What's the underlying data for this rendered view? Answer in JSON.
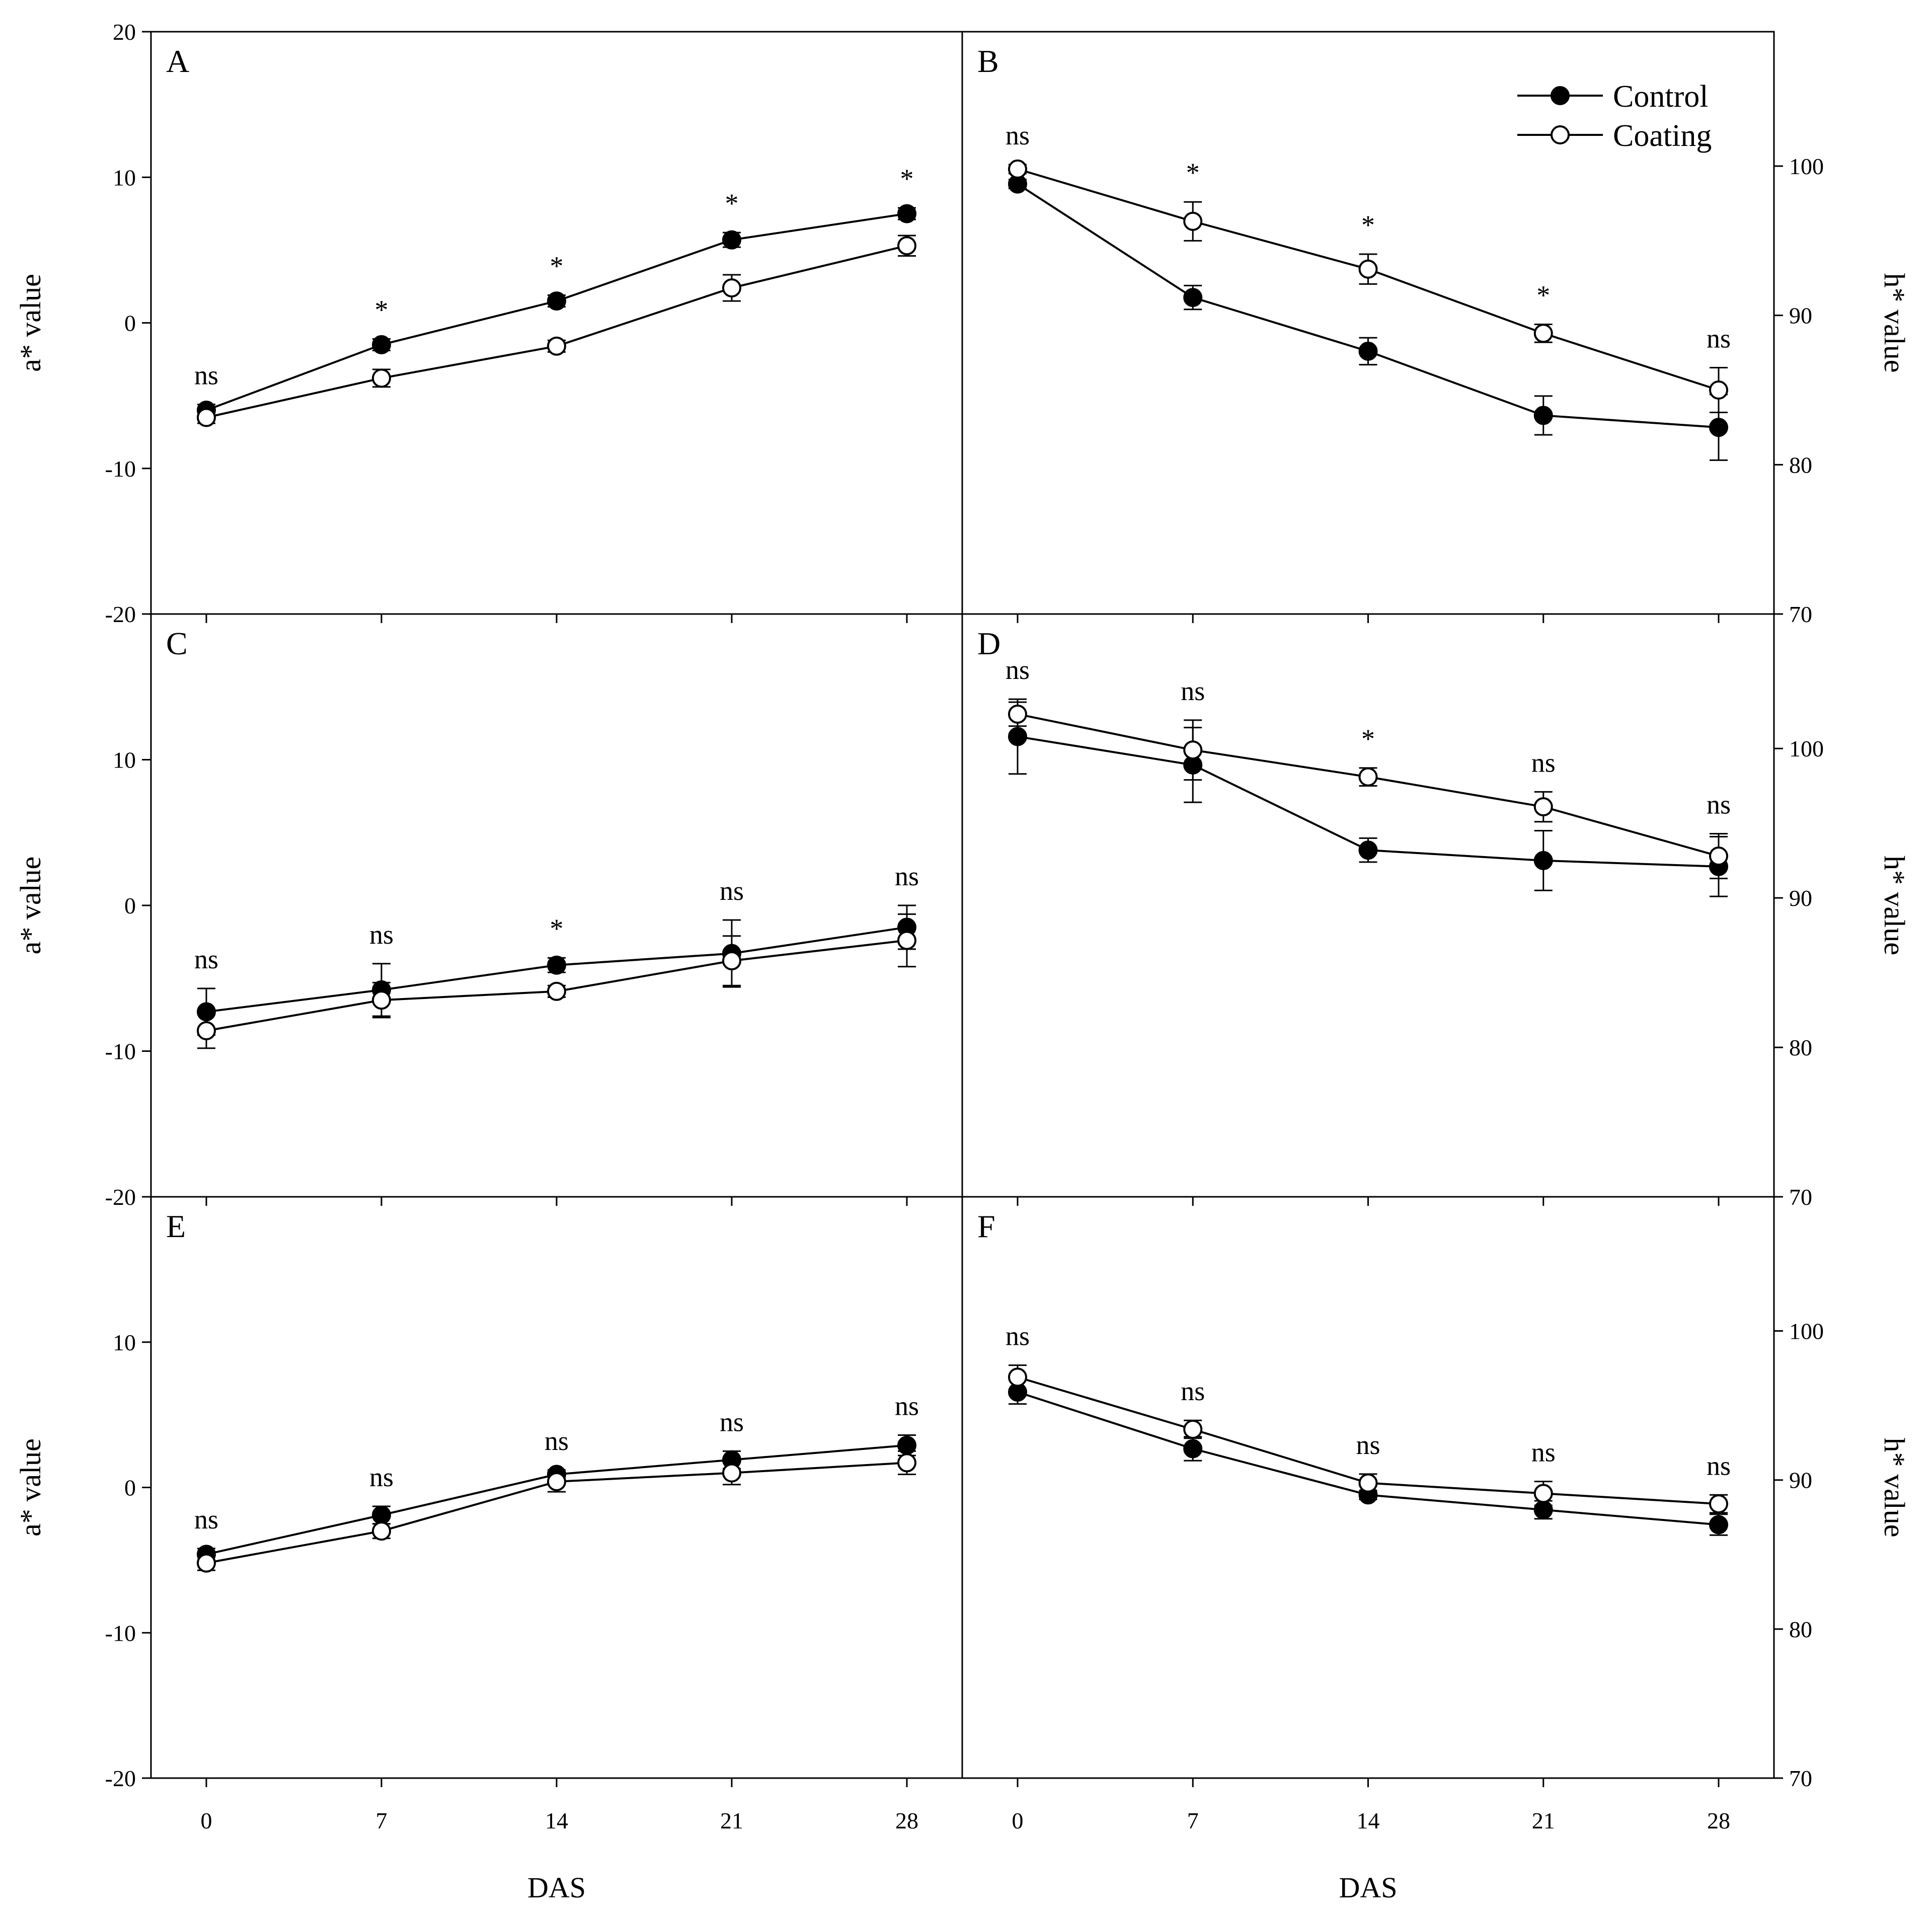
{
  "figure": {
    "legend": {
      "control": "Control",
      "coating": "Coating"
    },
    "colors": {
      "line": "#000000",
      "control_marker": "#000000",
      "coating_marker": "#ffffff"
    }
  },
  "chart_data": [
    {
      "panel": "A",
      "type": "line",
      "xlabel": "",
      "ylabel": "a* value",
      "ylabel_side": "left",
      "x": [
        0,
        7,
        14,
        21,
        28
      ],
      "x_tick_labels": [
        "0",
        "7",
        "14",
        "21",
        "28"
      ],
      "ylim": [
        -20,
        20
      ],
      "y_ticks": [
        -20,
        -10,
        0,
        10,
        20
      ],
      "y_tick_labels": [
        "-20",
        "-10",
        "0",
        "10",
        "20"
      ],
      "series": [
        {
          "name": "Control",
          "values": [
            -6,
            -1.5,
            1.5,
            5.7,
            7.5
          ],
          "errors": [
            0.4,
            0.4,
            0.4,
            0.5,
            0.4
          ]
        },
        {
          "name": "Coating",
          "values": [
            -6.5,
            -3.8,
            -1.6,
            2.4,
            5.3
          ],
          "errors": [
            0.4,
            0.6,
            0.4,
            0.9,
            0.7
          ]
        }
      ],
      "significance": [
        "ns",
        "*",
        "*",
        "*",
        "*"
      ]
    },
    {
      "panel": "B",
      "type": "line",
      "xlabel": "",
      "ylabel": "h* value",
      "ylabel_side": "right",
      "x": [
        0,
        7,
        14,
        21,
        28
      ],
      "x_tick_labels": [
        "0",
        "7",
        "14",
        "21",
        "28"
      ],
      "ylim": [
        70,
        109
      ],
      "y_ticks": [
        70,
        80,
        90,
        100
      ],
      "y_tick_labels": [
        "70",
        "80",
        "90",
        "100"
      ],
      "series": [
        {
          "name": "Control",
          "values": [
            98.8,
            91.2,
            87.6,
            83.3,
            82.5
          ],
          "errors": [
            0.3,
            0.8,
            0.9,
            1.3,
            2.2
          ]
        },
        {
          "name": "Coating",
          "values": [
            99.8,
            96.3,
            93.1,
            88.8,
            85.0
          ],
          "errors": [
            0.3,
            1.3,
            1.0,
            0.6,
            1.5
          ]
        }
      ],
      "significance": [
        "ns",
        "*",
        "*",
        "*",
        "ns"
      ]
    },
    {
      "panel": "C",
      "type": "line",
      "xlabel": "",
      "ylabel": "a* value",
      "ylabel_side": "left",
      "x": [
        0,
        7,
        14,
        21,
        28
      ],
      "x_tick_labels": [
        "0",
        "7",
        "14",
        "21",
        "28"
      ],
      "ylim": [
        -20,
        20
      ],
      "y_ticks": [
        -20,
        -10,
        0,
        10
      ],
      "y_tick_labels": [
        "-20",
        "-10",
        "0",
        "10"
      ],
      "series": [
        {
          "name": "Control",
          "values": [
            -7.3,
            -5.8,
            -4.1,
            -3.3,
            -1.5
          ],
          "errors": [
            1.6,
            1.8,
            0.5,
            2.3,
            1.5
          ]
        },
        {
          "name": "Coating",
          "values": [
            -8.6,
            -6.5,
            -5.9,
            -3.8,
            -2.4
          ],
          "errors": [
            1.2,
            1.2,
            0.4,
            1.7,
            1.8
          ]
        }
      ],
      "significance": [
        "ns",
        "ns",
        "*",
        "ns",
        "ns"
      ]
    },
    {
      "panel": "D",
      "type": "line",
      "xlabel": "",
      "ylabel": "h* value",
      "ylabel_side": "right",
      "x": [
        0,
        7,
        14,
        21,
        28
      ],
      "x_tick_labels": [
        "0",
        "7",
        "14",
        "21",
        "28"
      ],
      "ylim": [
        70,
        109
      ],
      "y_ticks": [
        70,
        80,
        90,
        100
      ],
      "y_tick_labels": [
        "70",
        "80",
        "90",
        "100"
      ],
      "series": [
        {
          "name": "Control",
          "values": [
            100.8,
            98.9,
            93.2,
            92.5,
            92.1
          ],
          "errors": [
            2.5,
            2.5,
            0.8,
            2.0,
            2.0
          ]
        },
        {
          "name": "Coating",
          "values": [
            102.3,
            99.9,
            98.1,
            96.1,
            92.8
          ],
          "errors": [
            0.8,
            2.0,
            0.6,
            1.0,
            1.5
          ]
        }
      ],
      "significance": [
        "ns",
        "ns",
        "*",
        "ns",
        "ns"
      ]
    },
    {
      "panel": "E",
      "type": "line",
      "xlabel": "DAS",
      "ylabel": "a* value",
      "ylabel_side": "left",
      "x": [
        0,
        7,
        14,
        21,
        28
      ],
      "x_tick_labels": [
        "0",
        "7",
        "14",
        "21",
        "28"
      ],
      "ylim": [
        -20,
        20
      ],
      "y_ticks": [
        -20,
        -10,
        0,
        10
      ],
      "y_tick_labels": [
        "-20",
        "-10",
        "0",
        "10"
      ],
      "series": [
        {
          "name": "Control",
          "values": [
            -4.6,
            -1.9,
            0.9,
            1.9,
            2.9
          ],
          "errors": [
            0.4,
            0.6,
            0.3,
            0.6,
            0.7
          ]
        },
        {
          "name": "Coating",
          "values": [
            -5.2,
            -3.0,
            0.4,
            1.0,
            1.7
          ],
          "errors": [
            0.5,
            0.5,
            0.7,
            0.8,
            0.8
          ]
        }
      ],
      "significance": [
        "ns",
        "ns",
        "ns",
        "ns",
        "ns"
      ]
    },
    {
      "panel": "F",
      "type": "line",
      "xlabel": "DAS",
      "ylabel": "h* value",
      "ylabel_side": "right",
      "x": [
        0,
        7,
        14,
        21,
        28
      ],
      "x_tick_labels": [
        "0",
        "7",
        "14",
        "21",
        "28"
      ],
      "ylim": [
        70,
        109
      ],
      "y_ticks": [
        70,
        80,
        90,
        100
      ],
      "y_tick_labels": [
        "70",
        "80",
        "90",
        "100"
      ],
      "series": [
        {
          "name": "Control",
          "values": [
            95.9,
            92.1,
            89.0,
            88.0,
            87.0
          ],
          "errors": [
            0.8,
            0.8,
            0.3,
            0.6,
            0.7
          ]
        },
        {
          "name": "Coating",
          "values": [
            96.9,
            93.4,
            89.8,
            89.1,
            88.4
          ],
          "errors": [
            0.8,
            0.6,
            0.6,
            0.8,
            0.6
          ]
        }
      ],
      "significance": [
        "ns",
        "ns",
        "ns",
        "ns",
        "ns"
      ]
    }
  ]
}
